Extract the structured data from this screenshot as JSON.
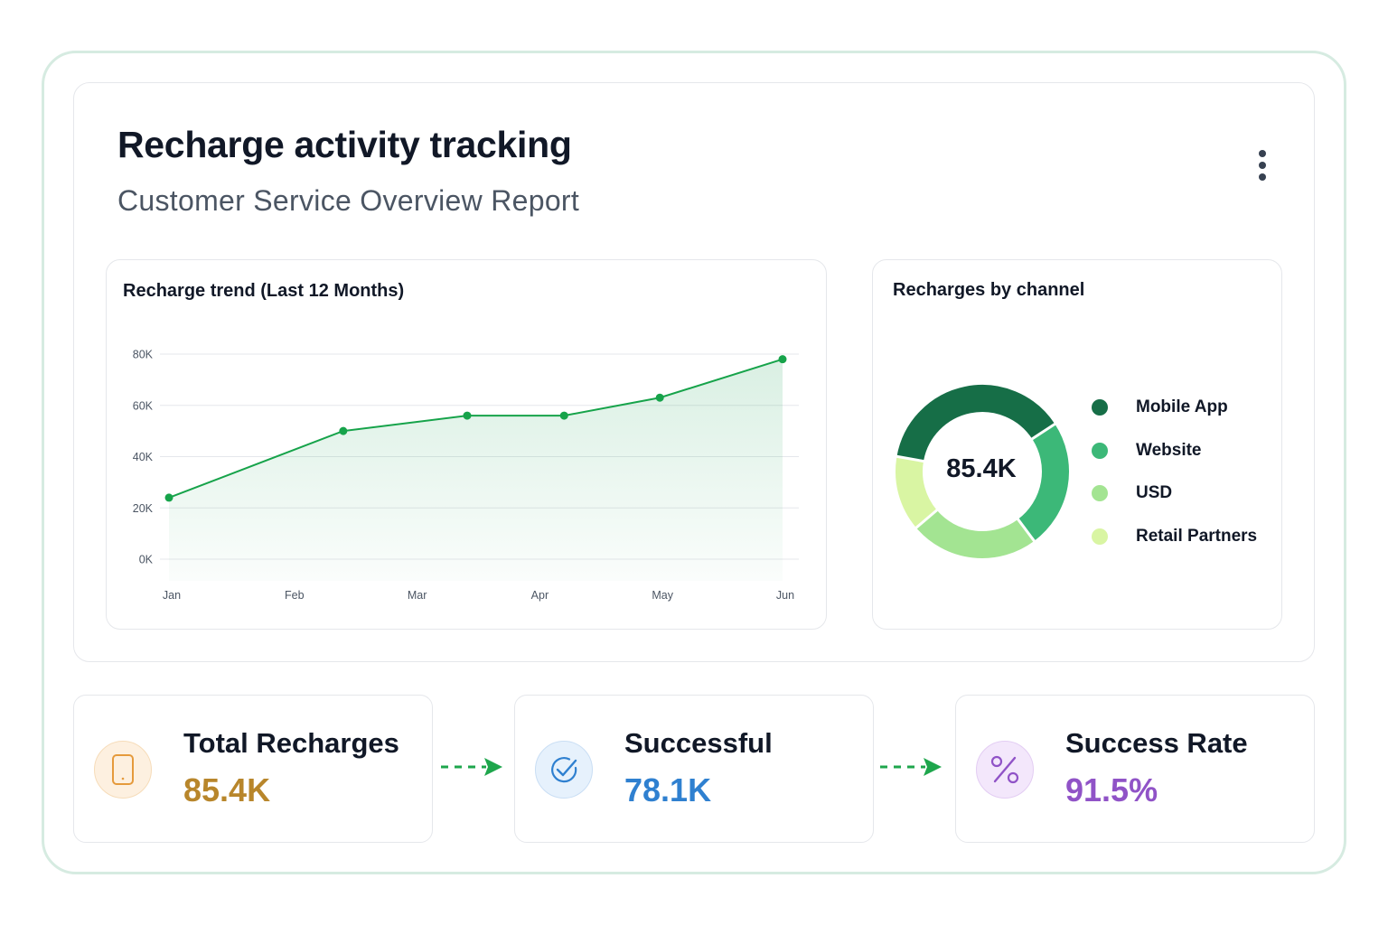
{
  "header": {
    "title": "Recharge activity tracking",
    "subtitle": "Customer Service Overview Report",
    "menu_icon": "more-vertical-icon"
  },
  "trend_panel": {
    "title": "Recharge trend (Last 12 Months)"
  },
  "channel_panel": {
    "title": "Recharges by channel",
    "center_value": "85.4K"
  },
  "colors": {
    "line": "#16a34a",
    "mobile_app": "#166e47",
    "website": "#3cb878",
    "usd": "#a3e492",
    "retail_partners": "#d9f5a3",
    "total_value": "#b8862b",
    "successful_value": "#2f80d0",
    "rate_value": "#9053c7"
  },
  "chart_data": [
    {
      "type": "area",
      "title": "Recharge trend (Last 12 Months)",
      "categories": [
        "Jan",
        "Feb",
        "Mar",
        "Apr",
        "May",
        "Jun"
      ],
      "x": [
        0,
        1.42,
        2.43,
        3.22,
        4.0,
        5.0
      ],
      "values": [
        24000,
        50000,
        56000,
        56000,
        63000,
        78000
      ],
      "xlim": [
        0,
        5
      ],
      "ylim": [
        0,
        80000
      ],
      "yticks": [
        "0K",
        "20K",
        "40K",
        "60K",
        "80K"
      ],
      "grid": true
    },
    {
      "type": "pie",
      "title": "Recharges by channel",
      "labels": [
        "Mobile App",
        "Website",
        "USD",
        "Retail Partners"
      ],
      "values": [
        38,
        24,
        24,
        14
      ]
    }
  ],
  "kpis": [
    {
      "label": "Total Recharges",
      "value": "85.4K",
      "icon": "smartphone-icon"
    },
    {
      "label": "Successful",
      "value": "78.1K",
      "icon": "check-circle-icon"
    },
    {
      "label": "Success Rate",
      "value": "91.5%",
      "icon": "percent-icon"
    }
  ],
  "flow_icons": [
    "dashed-arrow-right-icon",
    "dashed-arrow-right-icon"
  ]
}
